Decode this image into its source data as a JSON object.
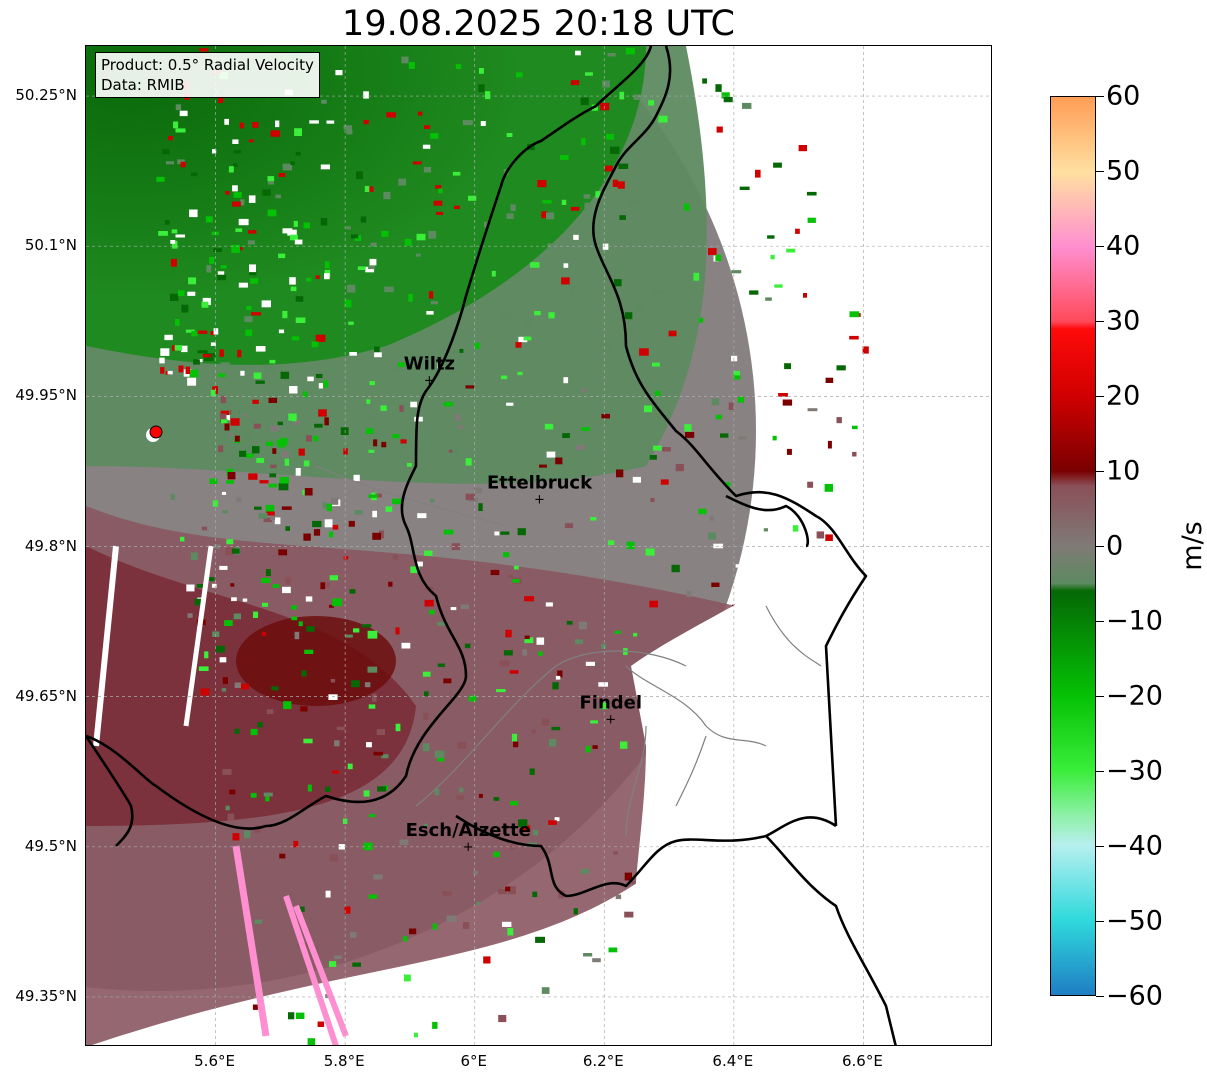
{
  "title": "19.08.2025 20:18 UTC",
  "info": {
    "product": "Product: 0.5° Radial Velocity",
    "source": "Data: RMIB"
  },
  "lat_ticks": [
    "50.25°N",
    "50.1°N",
    "49.95°N",
    "49.8°N",
    "49.65°N",
    "49.5°N",
    "49.35°N"
  ],
  "lon_ticks": [
    "5.6°E",
    "5.8°E",
    "6°E",
    "6.2°E",
    "6.4°E",
    "6.6°E"
  ],
  "cities": [
    {
      "name": "Wiltz",
      "lon": 5.93,
      "lat": 49.967
    },
    {
      "name": "Ettelbruck",
      "lon": 6.1,
      "lat": 49.848
    },
    {
      "name": "Findel",
      "lon": 6.21,
      "lat": 49.628
    },
    {
      "name": "Esch/Alzette",
      "lon": 5.99,
      "lat": 49.501
    }
  ],
  "radar_site": {
    "lon": 5.505,
    "lat": 49.914
  },
  "colorbar": {
    "label": "m/s",
    "ticks": [
      "60",
      "50",
      "40",
      "30",
      "20",
      "10",
      "0",
      "−10",
      "−20",
      "−30",
      "−40",
      "−50",
      "−60"
    ],
    "colors": {
      "neg60": "#1f7ec4",
      "neg50": "#2fd9dc",
      "neg40": "#b7efef",
      "neg30": "#3aee3a",
      "neg20": "#05c105",
      "neg10": "#056805",
      "neg5": "#5d8a60",
      "zero": "#7f7a76",
      "pos5": "#8a5058",
      "pos10": "#7a0000",
      "pos20": "#d00000",
      "pos30": "#ff4a5a",
      "pos40": "#ff8fd0",
      "pos50": "#ffe0a0",
      "pos60": "#ff9d55"
    }
  },
  "colors": {
    "border": "#000000",
    "canton_border": "#808080",
    "radar_dot": "#ff0000"
  }
}
